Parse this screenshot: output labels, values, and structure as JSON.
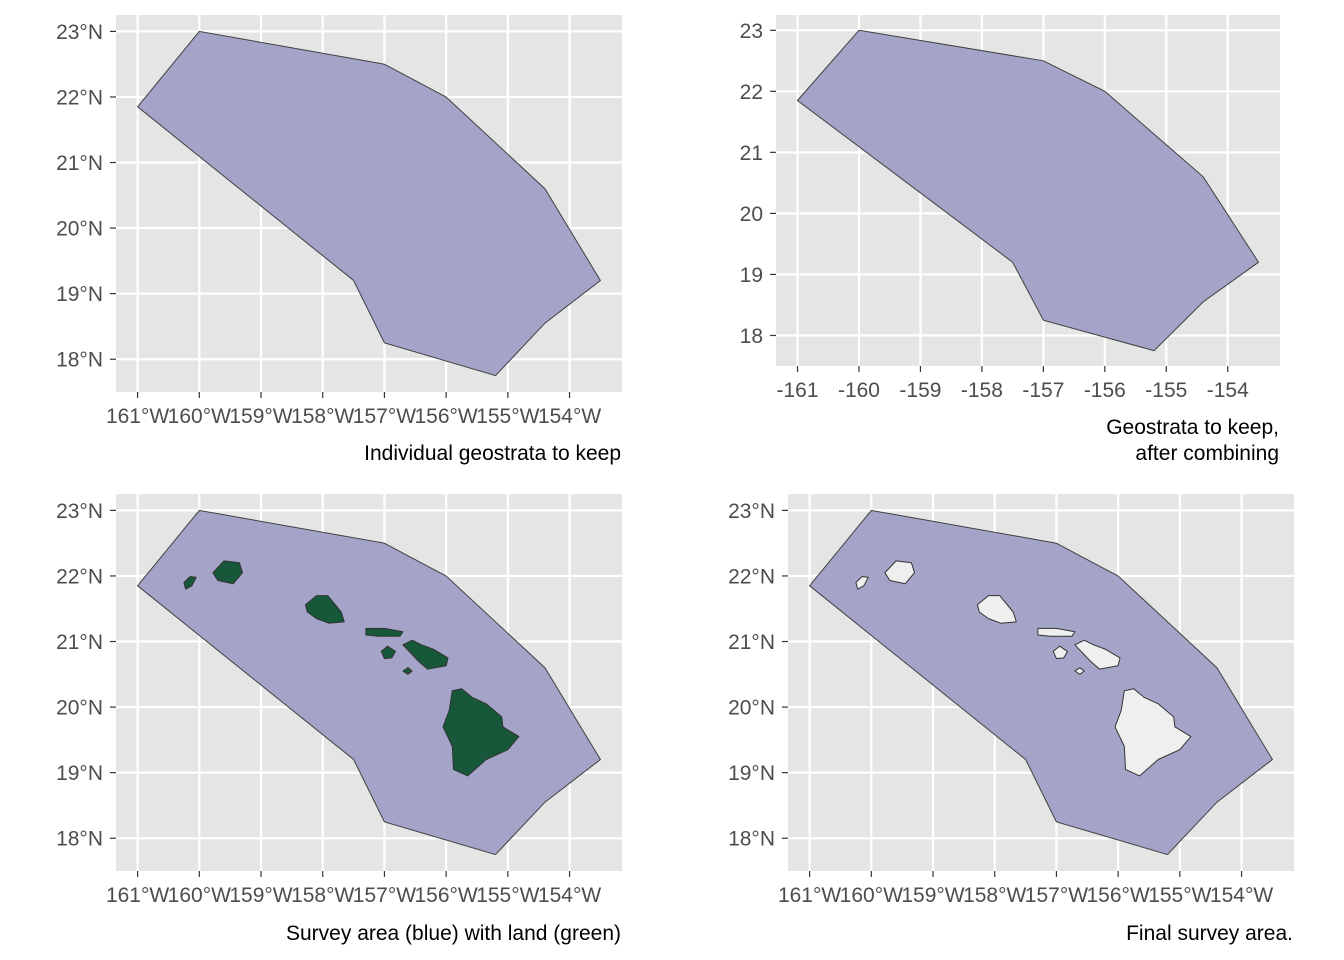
{
  "colors": {
    "panel_background": "#e5e5e5",
    "grid": "#ffffff",
    "survey_fill": "#a0a0c6",
    "survey_stroke": "#404040",
    "land_green": "#17573a",
    "land_white": "#efefef",
    "tick_text": "#4d4d4d",
    "caption_text": "#000000"
  },
  "chart_data": [
    {
      "type": "map",
      "caption": [
        "Individual geostrata to keep"
      ],
      "x_ticks": [
        -161,
        -160,
        -159,
        -158,
        -157,
        -156,
        -155,
        -154
      ],
      "x_tick_labels": [
        "161°W",
        "160°W",
        "159°W",
        "158°W",
        "157°W",
        "156°W",
        "155°W",
        "154°W"
      ],
      "y_ticks": [
        18,
        19,
        20,
        21,
        22,
        23
      ],
      "y_tick_labels": [
        "18°N",
        "19°N",
        "20°N",
        "21°N",
        "22°N",
        "23°N"
      ],
      "xlim": [
        -161.35,
        -153.15
      ],
      "ylim": [
        17.5,
        23.25
      ],
      "grid": true,
      "show_land": false,
      "land_style": "none"
    },
    {
      "type": "map",
      "caption": [
        "Geostrata to keep,",
        "after combining"
      ],
      "x_ticks": [
        -161,
        -160,
        -159,
        -158,
        -157,
        -156,
        -155,
        -154
      ],
      "x_tick_labels": [
        "-161",
        "-160",
        "-159",
        "-158",
        "-157",
        "-156",
        "-155",
        "-154"
      ],
      "y_ticks": [
        18,
        19,
        20,
        21,
        22,
        23
      ],
      "y_tick_labels": [
        "18",
        "19",
        "20",
        "21",
        "22",
        "23"
      ],
      "xlim": [
        -161.35,
        -153.15
      ],
      "ylim": [
        17.5,
        23.25
      ],
      "grid": true,
      "show_land": false,
      "land_style": "none"
    },
    {
      "type": "map",
      "caption": [
        "Survey area (blue) with land (green)"
      ],
      "x_ticks": [
        -161,
        -160,
        -159,
        -158,
        -157,
        -156,
        -155,
        -154
      ],
      "x_tick_labels": [
        "161°W",
        "160°W",
        "159°W",
        "158°W",
        "157°W",
        "156°W",
        "155°W",
        "154°W"
      ],
      "y_ticks": [
        18,
        19,
        20,
        21,
        22,
        23
      ],
      "y_tick_labels": [
        "18°N",
        "19°N",
        "20°N",
        "21°N",
        "22°N",
        "23°N"
      ],
      "xlim": [
        -161.35,
        -153.15
      ],
      "ylim": [
        17.5,
        23.25
      ],
      "grid": true,
      "show_land": true,
      "land_style": "green"
    },
    {
      "type": "map",
      "caption": [
        "Final survey area."
      ],
      "x_ticks": [
        -161,
        -160,
        -159,
        -158,
        -157,
        -156,
        -155,
        -154
      ],
      "x_tick_labels": [
        "161°W",
        "160°W",
        "159°W",
        "158°W",
        "157°W",
        "156°W",
        "155°W",
        "154°W"
      ],
      "y_ticks": [
        18,
        19,
        20,
        21,
        22,
        23
      ],
      "y_tick_labels": [
        "18°N",
        "19°N",
        "20°N",
        "21°N",
        "22°N",
        "23°N"
      ],
      "xlim": [
        -161.35,
        -153.15
      ],
      "ylim": [
        17.5,
        23.25
      ],
      "grid": true,
      "show_land": true,
      "land_style": "white"
    }
  ],
  "survey_polygon": [
    [
      -161.0,
      21.85
    ],
    [
      -160.0,
      23.0
    ],
    [
      -157.0,
      22.5
    ],
    [
      -156.0,
      22.0
    ],
    [
      -154.4,
      20.6
    ],
    [
      -153.5,
      19.2
    ],
    [
      -154.4,
      18.55
    ],
    [
      -155.2,
      17.75
    ],
    [
      -157.0,
      18.25
    ],
    [
      -157.5,
      19.2
    ],
    [
      -161.0,
      21.85
    ]
  ],
  "islands": [
    {
      "name": "Niihau",
      "coords": [
        [
          -160.25,
          21.9
        ],
        [
          -160.15,
          21.99
        ],
        [
          -160.05,
          21.98
        ],
        [
          -160.12,
          21.85
        ],
        [
          -160.22,
          21.8
        ]
      ]
    },
    {
      "name": "Kauai",
      "coords": [
        [
          -159.78,
          22.05
        ],
        [
          -159.6,
          22.23
        ],
        [
          -159.35,
          22.2
        ],
        [
          -159.3,
          22.05
        ],
        [
          -159.45,
          21.88
        ],
        [
          -159.7,
          21.93
        ]
      ]
    },
    {
      "name": "Oahu",
      "coords": [
        [
          -158.28,
          21.56
        ],
        [
          -158.1,
          21.7
        ],
        [
          -157.92,
          21.7
        ],
        [
          -157.7,
          21.45
        ],
        [
          -157.65,
          21.3
        ],
        [
          -157.9,
          21.28
        ],
        [
          -158.1,
          21.35
        ],
        [
          -158.25,
          21.45
        ]
      ]
    },
    {
      "name": "Molokai",
      "coords": [
        [
          -157.3,
          21.1
        ],
        [
          -157.3,
          21.2
        ],
        [
          -157.0,
          21.2
        ],
        [
          -156.7,
          21.15
        ],
        [
          -156.75,
          21.08
        ],
        [
          -157.1,
          21.08
        ]
      ]
    },
    {
      "name": "Lanai",
      "coords": [
        [
          -157.05,
          20.85
        ],
        [
          -156.95,
          20.93
        ],
        [
          -156.82,
          20.85
        ],
        [
          -156.88,
          20.75
        ],
        [
          -157.0,
          20.74
        ]
      ]
    },
    {
      "name": "Maui",
      "coords": [
        [
          -156.7,
          20.95
        ],
        [
          -156.55,
          21.02
        ],
        [
          -156.4,
          20.95
        ],
        [
          -156.2,
          20.88
        ],
        [
          -155.97,
          20.75
        ],
        [
          -156.0,
          20.63
        ],
        [
          -156.3,
          20.58
        ],
        [
          -156.45,
          20.7
        ],
        [
          -156.55,
          20.8
        ]
      ]
    },
    {
      "name": "Kahoolawe",
      "coords": [
        [
          -156.7,
          20.55
        ],
        [
          -156.62,
          20.6
        ],
        [
          -156.55,
          20.55
        ],
        [
          -156.62,
          20.5
        ]
      ]
    },
    {
      "name": "Hawaii",
      "coords": [
        [
          -155.9,
          20.25
        ],
        [
          -155.75,
          20.28
        ],
        [
          -155.58,
          20.15
        ],
        [
          -155.35,
          20.05
        ],
        [
          -155.1,
          19.85
        ],
        [
          -155.08,
          19.7
        ],
        [
          -154.82,
          19.55
        ],
        [
          -155.0,
          19.35
        ],
        [
          -155.35,
          19.2
        ],
        [
          -155.65,
          18.95
        ],
        [
          -155.88,
          19.05
        ],
        [
          -155.9,
          19.4
        ],
        [
          -156.05,
          19.7
        ],
        [
          -155.95,
          19.95
        ]
      ]
    }
  ]
}
